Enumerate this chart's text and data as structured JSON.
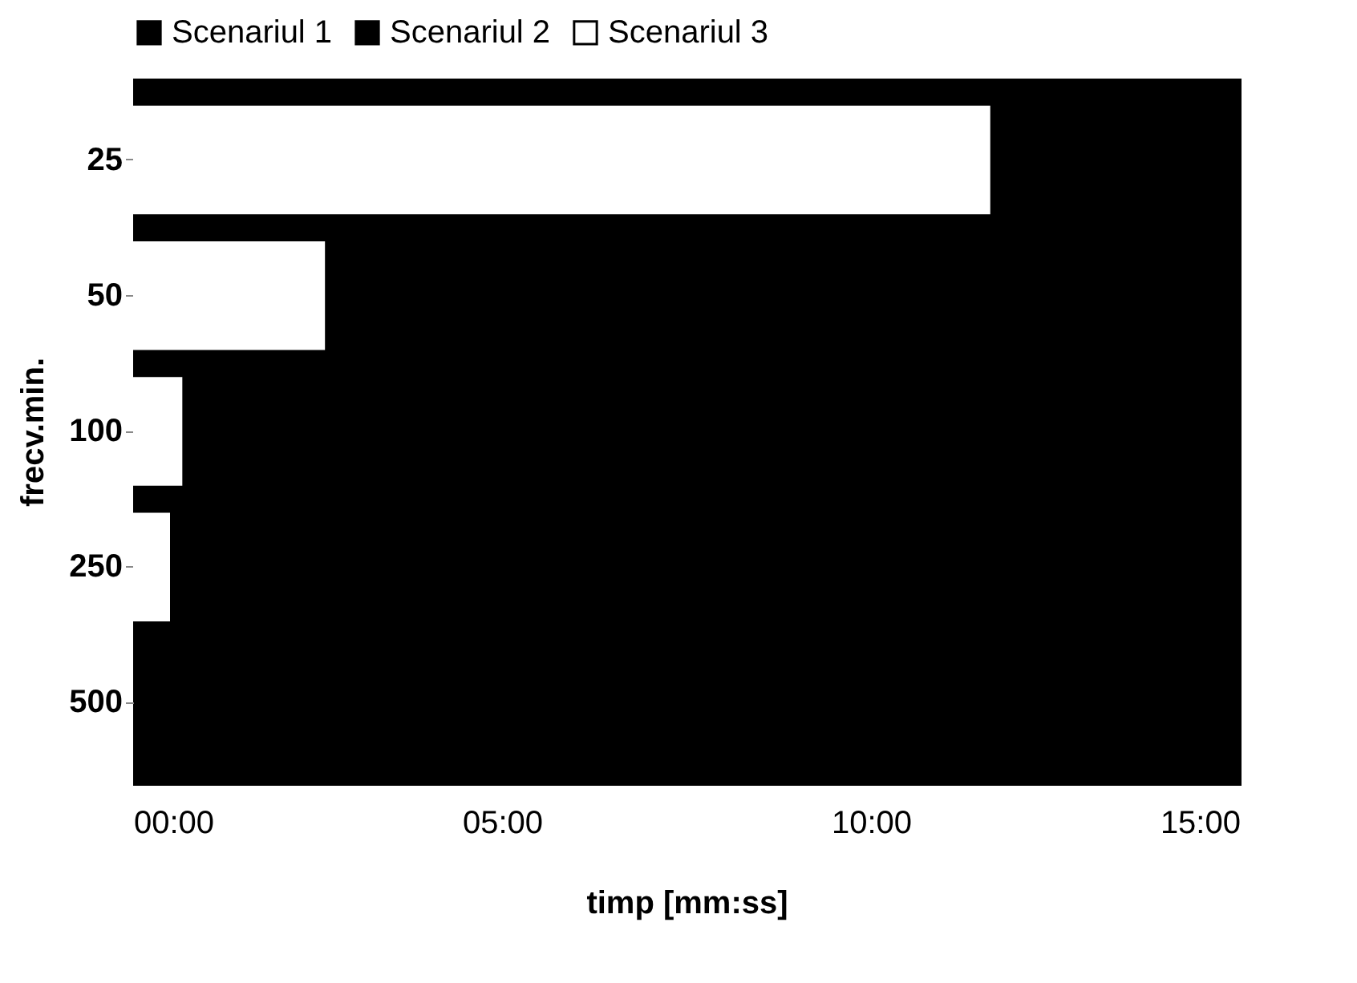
{
  "chart_data": {
    "type": "bar",
    "orientation": "horizontal",
    "xlabel": "timp [mm:ss]",
    "ylabel": "frecv.min.",
    "categories": [
      "25",
      "50",
      "100",
      "250",
      "500"
    ],
    "series": [
      {
        "name": "Scenariul 1",
        "color": "#000000",
        "values": [
          null,
          null,
          null,
          null,
          null
        ]
      },
      {
        "name": "Scenariul 2",
        "color": "#000000",
        "values": [
          null,
          null,
          null,
          null,
          null
        ]
      },
      {
        "name": "Scenariul 3",
        "color": "#ffffff",
        "values": [
          697,
          156,
          40,
          30,
          null
        ]
      }
    ],
    "xlim": [
      0,
      900
    ],
    "xticks": [
      {
        "value": 0,
        "label": "00:00"
      },
      {
        "value": 300,
        "label": "05:00"
      },
      {
        "value": 600,
        "label": "10:00"
      },
      {
        "value": 900,
        "label": "15:00"
      }
    ],
    "grid": false,
    "legend": "top"
  }
}
